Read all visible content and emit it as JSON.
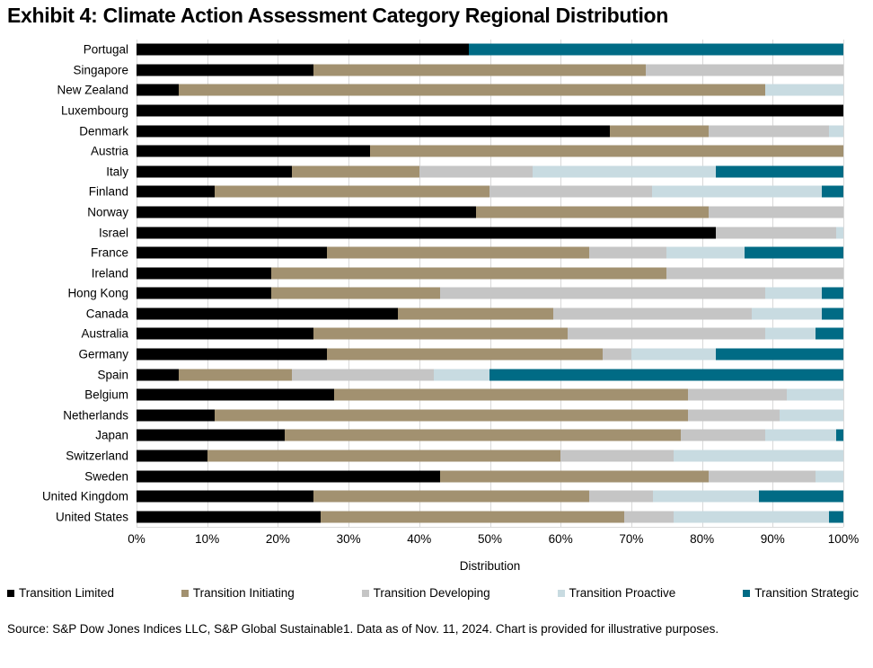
{
  "title": "Exhibit 4: Climate Action Assessment Category Regional Distribution",
  "source_note": "Source: S&P Dow Jones Indices LLC, S&P Global Sustainable1. Data as of Nov. 11, 2024. Chart is provided for illustrative purposes.",
  "chart_data": {
    "type": "bar",
    "orientation": "horizontal-stacked",
    "title": "Exhibit 4: Climate Action Assessment Category Regional Distribution",
    "xlabel": "Distribution",
    "ylabel": "",
    "xlim": [
      0,
      100
    ],
    "x_ticks": [
      "0%",
      "10%",
      "20%",
      "30%",
      "40%",
      "50%",
      "60%",
      "70%",
      "80%",
      "90%",
      "100%"
    ],
    "grid": true,
    "gridline_color": "#d9d9d9",
    "legend_position": "bottom",
    "categories": [
      "Portugal",
      "Singapore",
      "New Zealand",
      "Luxembourg",
      "Denmark",
      "Austria",
      "Italy",
      "Finland",
      "Norway",
      "Israel",
      "France",
      "Ireland",
      "Hong Kong",
      "Canada",
      "Australia",
      "Germany",
      "Spain",
      "Belgium",
      "Netherlands",
      "Japan",
      "Switzerland",
      "Sweden",
      "United Kingdom",
      "United States"
    ],
    "series": [
      {
        "name": "Transition Limited",
        "color": "#000000",
        "values": [
          47,
          25,
          6,
          100,
          67,
          33,
          22,
          11,
          48,
          82,
          27,
          19,
          19,
          37,
          25,
          27,
          6,
          28,
          11,
          21,
          10,
          43,
          25,
          26
        ]
      },
      {
        "name": "Transition Initiating",
        "color": "#a29170",
        "values": [
          0,
          47,
          83,
          0,
          14,
          67,
          18,
          39,
          33,
          0,
          37,
          56,
          24,
          22,
          36,
          39,
          16,
          50,
          67,
          56,
          50,
          38,
          39,
          43
        ]
      },
      {
        "name": "Transition Developing",
        "color": "#c5c5c5",
        "values": [
          0,
          28,
          0,
          0,
          17,
          0,
          16,
          23,
          19,
          17,
          11,
          25,
          46,
          28,
          28,
          4,
          20,
          14,
          13,
          12,
          16,
          15,
          9,
          7
        ]
      },
      {
        "name": "Transition Proactive",
        "color": "#c8dbe1",
        "values": [
          0,
          0,
          11,
          0,
          2,
          0,
          26,
          24,
          0,
          1,
          11,
          0,
          8,
          10,
          7,
          12,
          8,
          8,
          9,
          10,
          24,
          4,
          15,
          22
        ]
      },
      {
        "name": "Transition Strategic",
        "color": "#006b85",
        "values": [
          53,
          0,
          0,
          0,
          0,
          0,
          18,
          3,
          0,
          0,
          14,
          0,
          3,
          3,
          4,
          18,
          50,
          0,
          0,
          1,
          0,
          0,
          12,
          2
        ]
      }
    ]
  }
}
